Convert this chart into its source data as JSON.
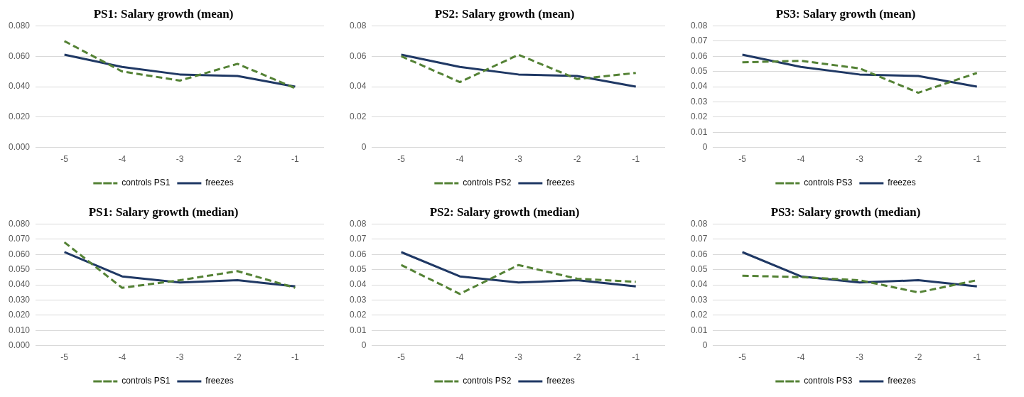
{
  "chart_data": [
    {
      "type": "line",
      "title": "PS1: Salary growth (mean)",
      "categories": [
        "-5",
        "-4",
        "-3",
        "-2",
        "-1"
      ],
      "ylim": [
        0,
        0.08
      ],
      "yticks": [
        {
          "value": 0,
          "label": "0.000"
        },
        {
          "value": 0.02,
          "label": "0.020"
        },
        {
          "value": 0.04,
          "label": "0.040"
        },
        {
          "value": 0.06,
          "label": "0.060"
        },
        {
          "value": 0.08,
          "label": "0.080"
        }
      ],
      "grid": "y",
      "legend": "bottom",
      "marker": "none",
      "series": [
        {
          "name": "controls PS1",
          "color": "#548235",
          "line_style": "dashed",
          "values": [
            0.07,
            0.05,
            0.044,
            0.055,
            0.039
          ]
        },
        {
          "name": "freezes",
          "color": "#1f3864",
          "line_style": "solid",
          "values": [
            0.061,
            0.053,
            0.048,
            0.047,
            0.04
          ]
        }
      ]
    },
    {
      "type": "line",
      "title": "PS2: Salary growth (mean)",
      "categories": [
        "-5",
        "-4",
        "-3",
        "-2",
        "-1"
      ],
      "ylim": [
        0,
        0.08
      ],
      "yticks": [
        0,
        0.02,
        0.04,
        0.06,
        0.08
      ],
      "grid": "y",
      "legend": "bottom",
      "marker": "none",
      "series": [
        {
          "name": "controls PS2",
          "color": "#548235",
          "line_style": "dashed",
          "values": [
            0.06,
            0.043,
            0.061,
            0.045,
            0.049
          ]
        },
        {
          "name": "freezes",
          "color": "#1f3864",
          "line_style": "solid",
          "values": [
            0.061,
            0.053,
            0.048,
            0.047,
            0.04
          ]
        }
      ]
    },
    {
      "type": "line",
      "title": "PS3: Salary growth (mean)",
      "categories": [
        "-5",
        "-4",
        "-3",
        "-2",
        "-1"
      ],
      "ylim": [
        0,
        0.08
      ],
      "yticks": [
        0,
        0.01,
        0.02,
        0.03,
        0.04,
        0.05,
        0.06,
        0.07,
        0.08
      ],
      "grid": "y",
      "legend": "bottom",
      "marker": "none",
      "series": [
        {
          "name": "controls PS3",
          "color": "#548235",
          "line_style": "dashed",
          "values": [
            0.056,
            0.057,
            0.052,
            0.036,
            0.049
          ]
        },
        {
          "name": "freezes",
          "color": "#1f3864",
          "line_style": "solid",
          "values": [
            0.061,
            0.053,
            0.048,
            0.047,
            0.04
          ]
        }
      ]
    },
    {
      "type": "line",
      "title": "PS1: Salary growth (median)",
      "categories": [
        "-5",
        "-4",
        "-3",
        "-2",
        "-1"
      ],
      "ylim": [
        0,
        0.08
      ],
      "yticks": [
        {
          "value": 0,
          "label": "0.000"
        },
        {
          "value": 0.01,
          "label": "0.010"
        },
        {
          "value": 0.02,
          "label": "0.020"
        },
        {
          "value": 0.03,
          "label": "0.030"
        },
        {
          "value": 0.04,
          "label": "0.040"
        },
        {
          "value": 0.05,
          "label": "0.050"
        },
        {
          "value": 0.06,
          "label": "0.060"
        },
        {
          "value": 0.07,
          "label": "0.070"
        },
        {
          "value": 0.08,
          "label": "0.080"
        }
      ],
      "grid": "y",
      "legend": "bottom",
      "marker": "none",
      "series": [
        {
          "name": "controls PS1",
          "color": "#548235",
          "line_style": "dashed",
          "values": [
            0.068,
            0.038,
            0.043,
            0.049,
            0.038
          ]
        },
        {
          "name": "freezes",
          "color": "#1f3864",
          "line_style": "solid",
          "values": [
            0.0615,
            0.0455,
            0.0415,
            0.043,
            0.039
          ]
        }
      ]
    },
    {
      "type": "line",
      "title": "PS2: Salary growth (median)",
      "categories": [
        "-5",
        "-4",
        "-3",
        "-2",
        "-1"
      ],
      "ylim": [
        0,
        0.08
      ],
      "yticks": [
        0,
        0.01,
        0.02,
        0.03,
        0.04,
        0.05,
        0.06,
        0.07,
        0.08
      ],
      "grid": "y",
      "legend": "bottom",
      "marker": "none",
      "series": [
        {
          "name": "controls PS2",
          "color": "#548235",
          "line_style": "dashed",
          "values": [
            0.053,
            0.034,
            0.053,
            0.044,
            0.042
          ]
        },
        {
          "name": "freezes",
          "color": "#1f3864",
          "line_style": "solid",
          "values": [
            0.0615,
            0.0455,
            0.0415,
            0.043,
            0.039
          ]
        }
      ]
    },
    {
      "type": "line",
      "title": "PS3: Salary growth (median)",
      "categories": [
        "-5",
        "-4",
        "-3",
        "-2",
        "-1"
      ],
      "ylim": [
        0,
        0.08
      ],
      "yticks": [
        0,
        0.01,
        0.02,
        0.03,
        0.04,
        0.05,
        0.06,
        0.07,
        0.08
      ],
      "grid": "y",
      "legend": "bottom",
      "marker": "none",
      "series": [
        {
          "name": "controls PS3",
          "color": "#548235",
          "line_style": "dashed",
          "values": [
            0.046,
            0.045,
            0.043,
            0.035,
            0.043
          ]
        },
        {
          "name": "freezes",
          "color": "#1f3864",
          "line_style": "solid",
          "values": [
            0.0615,
            0.0455,
            0.0415,
            0.043,
            0.039
          ]
        }
      ]
    }
  ]
}
